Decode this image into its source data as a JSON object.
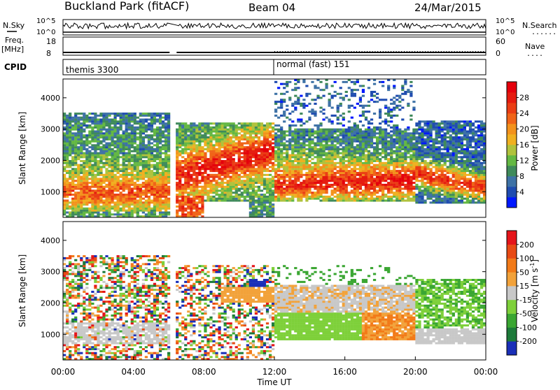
{
  "header": {
    "title": "Buckland Park (fitACF)",
    "beam": "Beam 04",
    "date": "24/Mar/2015"
  },
  "top_panels": {
    "nsky_label": "N.Sky",
    "nsky_ticks": [
      "10^5",
      "10^0"
    ],
    "nsearch_label": "N.Search",
    "nsearch_ticks": [
      "10^5",
      "10^0"
    ],
    "freq_label": "Freq.",
    "freq_unit": "[MHz]",
    "freq_ticks": [
      "18",
      "8"
    ],
    "nave_label": "Nave",
    "nave_ticks": [
      "60",
      "0"
    ],
    "cpid_label": "CPID",
    "cpid_modes": [
      {
        "label": "themis 3300",
        "start_hour": 0
      },
      {
        "label": "normal (fast) 151",
        "start_hour": 12
      }
    ]
  },
  "chart_data": [
    {
      "type": "heatmap",
      "name": "power_panel",
      "ylabel": "Slant Range [km]",
      "yticks": [
        "1000",
        "2000",
        "3000",
        "4000"
      ],
      "ytick_values": [
        1000,
        2000,
        3000,
        4000
      ],
      "ylim": [
        180,
        4600
      ],
      "xlim_hours": [
        0,
        24
      ],
      "colorbar": {
        "label": "Power [dB]",
        "tick_labels": [
          "4",
          "8",
          "12",
          "16",
          "20",
          "24",
          "28"
        ],
        "tick_values": [
          4,
          8,
          12,
          16,
          20,
          24,
          28
        ],
        "range": [
          0,
          32
        ],
        "colors": [
          "#0018ff",
          "#1f4cb0",
          "#3e72a6",
          "#3f8a5b",
          "#64b843",
          "#b0c23c",
          "#f0b020",
          "#f3921c",
          "#f06418",
          "#ea3d14",
          "#e51b0f",
          "#e5000b"
        ]
      }
    },
    {
      "type": "heatmap",
      "name": "velocity_panel",
      "ylabel": "Slant Range [km]",
      "yticks": [
        "1000",
        "2000",
        "3000",
        "4000"
      ],
      "ytick_values": [
        1000,
        2000,
        3000,
        4000
      ],
      "ylim": [
        180,
        4600
      ],
      "xlim_hours": [
        0,
        24
      ],
      "xticks": [
        "00:00",
        "04:00",
        "08:00",
        "12:00",
        "16:00",
        "20:00",
        "00:00"
      ],
      "xtick_values": [
        0,
        4,
        8,
        12,
        16,
        20,
        24
      ],
      "xlabel": "Time UT",
      "colorbar": {
        "label": "Velocity [m s^-1]",
        "tick_labels": [
          "200",
          "100",
          "50",
          "15",
          "-15",
          "-50",
          "-100",
          "-200"
        ],
        "colors": [
          "#1a2fb8",
          "#1d7a3a",
          "#3aa632",
          "#7ed03a",
          "#c8c8c8",
          "#f2a23a",
          "#f27a18",
          "#e84a14",
          "#e5141a"
        ]
      }
    }
  ]
}
